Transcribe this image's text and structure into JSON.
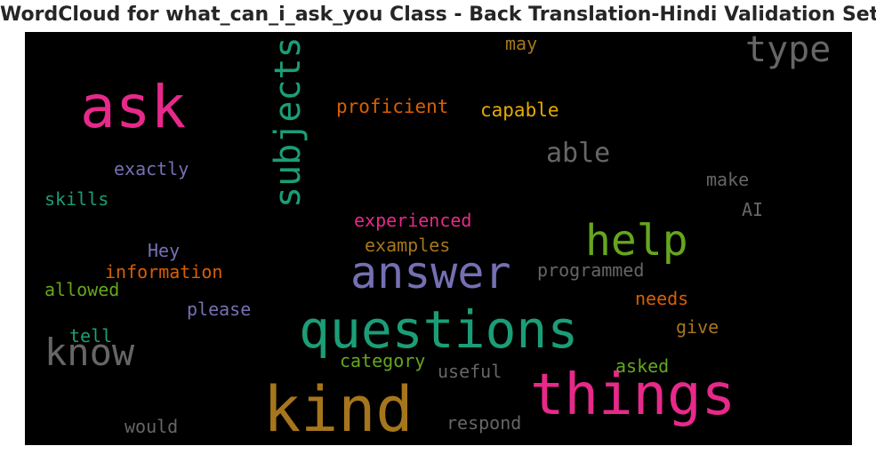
{
  "chart_data": {
    "type": "wordcloud",
    "title": "WordCloud for what_can_i_ask_you Class - Back Translation-Hindi Validation Set",
    "background": "#000000",
    "words": [
      {
        "text": "ask",
        "weight": 1.0,
        "color": "#e7298a"
      },
      {
        "text": "questions",
        "weight": 0.95,
        "color": "#1b9e77"
      },
      {
        "text": "kind",
        "weight": 0.95,
        "color": "#a6761d"
      },
      {
        "text": "things",
        "weight": 0.95,
        "color": "#e7298a"
      },
      {
        "text": "answer",
        "weight": 0.72,
        "color": "#7570b3"
      },
      {
        "text": "help",
        "weight": 0.7,
        "color": "#66a61e"
      },
      {
        "text": "subjects",
        "weight": 0.6,
        "color": "#1b9e77"
      },
      {
        "text": "know",
        "weight": 0.6,
        "color": "#666666"
      },
      {
        "text": "type",
        "weight": 0.55,
        "color": "#666666"
      },
      {
        "text": "able",
        "weight": 0.45,
        "color": "#666666"
      },
      {
        "text": "proficient",
        "weight": 0.35,
        "color": "#d95f02"
      },
      {
        "text": "capable",
        "weight": 0.35,
        "color": "#e6ab02"
      },
      {
        "text": "may",
        "weight": 0.32,
        "color": "#a6761d"
      },
      {
        "text": "exactly",
        "weight": 0.32,
        "color": "#7570b3"
      },
      {
        "text": "skills",
        "weight": 0.32,
        "color": "#1b9e77"
      },
      {
        "text": "make",
        "weight": 0.32,
        "color": "#666666"
      },
      {
        "text": "AI",
        "weight": 0.32,
        "color": "#666666"
      },
      {
        "text": "experienced",
        "weight": 0.32,
        "color": "#e7298a"
      },
      {
        "text": "examples",
        "weight": 0.32,
        "color": "#a6761d"
      },
      {
        "text": "Hey",
        "weight": 0.32,
        "color": "#7570b3"
      },
      {
        "text": "information",
        "weight": 0.32,
        "color": "#d95f02"
      },
      {
        "text": "programmed",
        "weight": 0.32,
        "color": "#666666"
      },
      {
        "text": "allowed",
        "weight": 0.32,
        "color": "#66a61e"
      },
      {
        "text": "needs",
        "weight": 0.32,
        "color": "#d95f02"
      },
      {
        "text": "please",
        "weight": 0.32,
        "color": "#7570b3"
      },
      {
        "text": "give",
        "weight": 0.32,
        "color": "#a6761d"
      },
      {
        "text": "tell",
        "weight": 0.32,
        "color": "#1b9e77"
      },
      {
        "text": "category",
        "weight": 0.32,
        "color": "#66a61e"
      },
      {
        "text": "useful",
        "weight": 0.32,
        "color": "#666666"
      },
      {
        "text": "asked",
        "weight": 0.32,
        "color": "#66a61e"
      },
      {
        "text": "would",
        "weight": 0.32,
        "color": "#666666"
      },
      {
        "text": "respond",
        "weight": 0.32,
        "color": "#666666"
      }
    ]
  }
}
